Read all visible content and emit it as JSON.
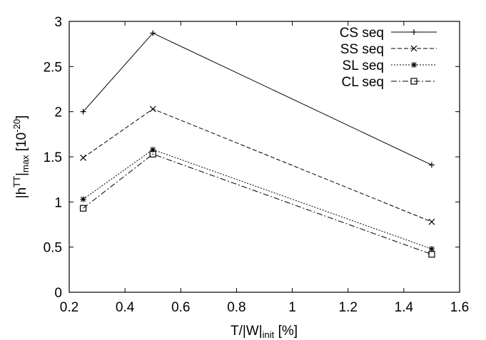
{
  "chart_data": {
    "type": "line",
    "title": "",
    "xlabel": {
      "main": "T/|W|",
      "sub": "init",
      "tail": " [%]"
    },
    "ylabel": {
      "pre": "|h",
      "sup": "TT",
      "mid": "|",
      "sub": "max",
      "post": " [10",
      "exp": "-20",
      "close": "]"
    },
    "xlim": [
      0.2,
      1.6
    ],
    "ylim": [
      0,
      3
    ],
    "xticks": [
      0.2,
      0.4,
      0.6,
      0.8,
      1,
      1.2,
      1.4,
      1.6
    ],
    "xtick_labels": [
      "0.2",
      "0.4",
      "0.6",
      "0.8",
      "1",
      "1.2",
      "1.4",
      "1.6"
    ],
    "yticks": [
      0,
      0.5,
      1,
      1.5,
      2,
      2.5,
      3
    ],
    "ytick_labels": [
      "0",
      "0.5",
      "1",
      "1.5",
      "2",
      "2.5",
      "3"
    ],
    "legend_position": "top-right",
    "grid": false,
    "series": [
      {
        "name": "CS seq",
        "x": [
          0.25,
          0.5,
          1.5
        ],
        "y": [
          2.0,
          2.87,
          1.41
        ],
        "marker": "plus",
        "dash": "solid"
      },
      {
        "name": "SS seq",
        "x": [
          0.25,
          0.5,
          1.5
        ],
        "y": [
          1.49,
          2.03,
          0.78
        ],
        "marker": "cross",
        "dash": "dashed"
      },
      {
        "name": "SL seq",
        "x": [
          0.25,
          0.5,
          1.5
        ],
        "y": [
          1.03,
          1.58,
          0.48
        ],
        "marker": "star",
        "dash": "dotted"
      },
      {
        "name": "CL seq",
        "x": [
          0.25,
          0.5,
          1.5
        ],
        "y": [
          0.93,
          1.53,
          0.42
        ],
        "marker": "square",
        "dash": "dashdot"
      }
    ]
  }
}
